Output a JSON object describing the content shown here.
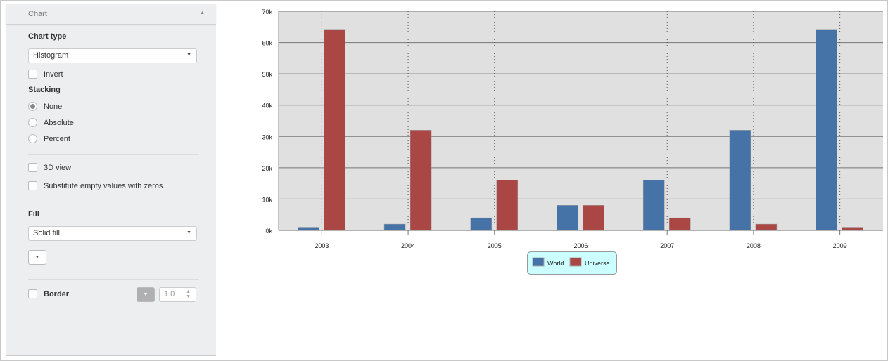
{
  "panel": {
    "section_title": "Chart",
    "chart_type_label": "Chart type",
    "chart_type_value": "Histogram",
    "invert_label": "Invert",
    "stacking_label": "Stacking",
    "stacking_options": [
      "None",
      "Absolute",
      "Percent"
    ],
    "stacking_selected": "None",
    "view3d_label": "3D view",
    "substitute_label": "Substitute empty values with zeros",
    "fill_label": "Fill",
    "fill_value": "Solid fill",
    "border_label": "Border",
    "border_width": "1.0"
  },
  "chart_data": {
    "type": "bar",
    "categories": [
      "2003",
      "2004",
      "2005",
      "2006",
      "2007",
      "2008",
      "2009"
    ],
    "series": [
      {
        "name": "World",
        "color": "#4572a7",
        "values": [
          1000,
          2000,
          4000,
          8000,
          16000,
          32000,
          64000
        ]
      },
      {
        "name": "Universe",
        "color": "#aa4643",
        "values": [
          64000,
          32000,
          16000,
          8000,
          4000,
          2000,
          1000
        ]
      }
    ],
    "ylim": [
      0,
      70000
    ],
    "yticks": [
      "0k",
      "10k",
      "20k",
      "30k",
      "40k",
      "50k",
      "60k",
      "70k"
    ],
    "grid": true,
    "legend": "bottom-center",
    "plot_background": "#e0e0e0",
    "legend_background": "#ccffff"
  }
}
